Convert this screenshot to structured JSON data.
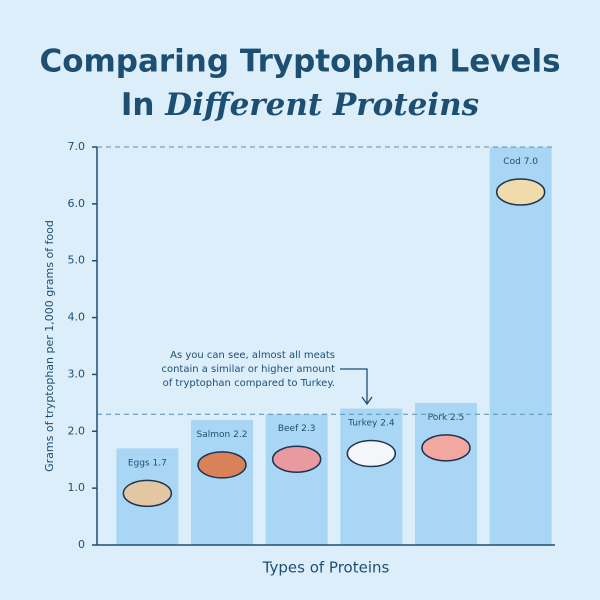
{
  "chart_data": {
    "type": "bar",
    "title": [
      "Comparing Tryptophan Levels",
      "In",
      "Different Proteins"
    ],
    "x_label": "Types of Proteins",
    "y_label": "Grams of tryptophan per 1,000 grams of food",
    "categories": [
      "Eggs",
      "Salmon",
      "Beef",
      "Turkey",
      "Pork",
      "Cod"
    ],
    "values": [
      1.7,
      2.2,
      2.3,
      2.4,
      2.5,
      7.0
    ],
    "value_labels": [
      "1.7",
      "2.2",
      "2.3",
      "2.4",
      "2.5",
      "7.0"
    ],
    "color": "#a9d6f5",
    "ylim": [
      0,
      7
    ],
    "yticks": [
      0,
      {
        "value": 1,
        "label": "1.0"
      },
      {
        "value": 2,
        "label": "2.0"
      },
      {
        "value": 3,
        "label": "3.0"
      },
      {
        "value": 4,
        "label": "4.0"
      },
      {
        "value": 5,
        "label": "5.0"
      },
      {
        "value": 6,
        "label": "6.0"
      },
      {
        "value": 7,
        "label": "7.0"
      }
    ],
    "reference_lines": [
      7.0,
      2.3
    ],
    "annotation": [
      "As you can see, almost all meats",
      "contain a similar or higher amount",
      "of tryptophan compared to Turkey."
    ]
  }
}
